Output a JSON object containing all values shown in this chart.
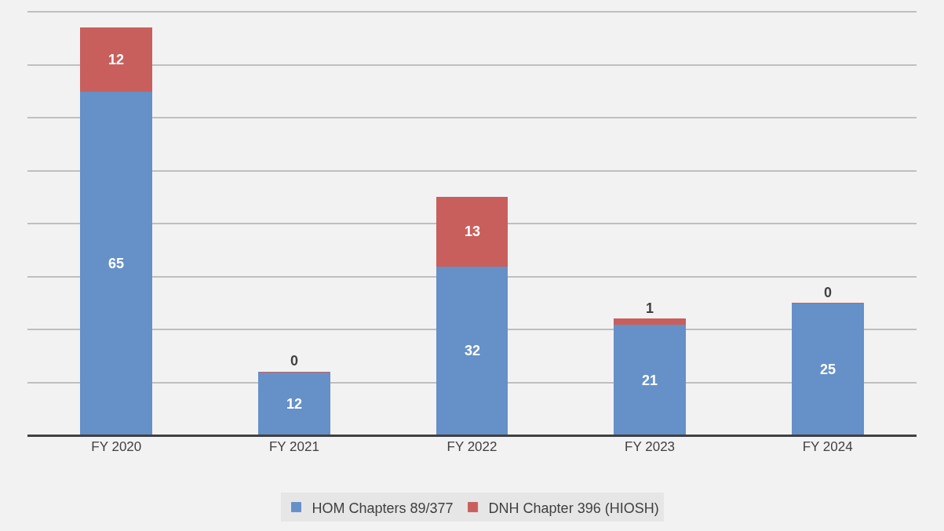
{
  "chart_data": {
    "type": "bar",
    "stacked": true,
    "categories": [
      "FY 2020",
      "FY 2021",
      "FY 2022",
      "FY 2023",
      "FY 2024"
    ],
    "series": [
      {
        "name": "HOM Chapters 89/377",
        "color": "#6690c8",
        "values": [
          65,
          12,
          32,
          21,
          25
        ]
      },
      {
        "name": "DNH Chapter 396 (HIOSH)",
        "color": "#c95f5c",
        "values": [
          12,
          0,
          13,
          1,
          0
        ]
      }
    ],
    "data_labels": true,
    "grid": "y",
    "legend": "bottom",
    "tick_labels": "x"
  }
}
